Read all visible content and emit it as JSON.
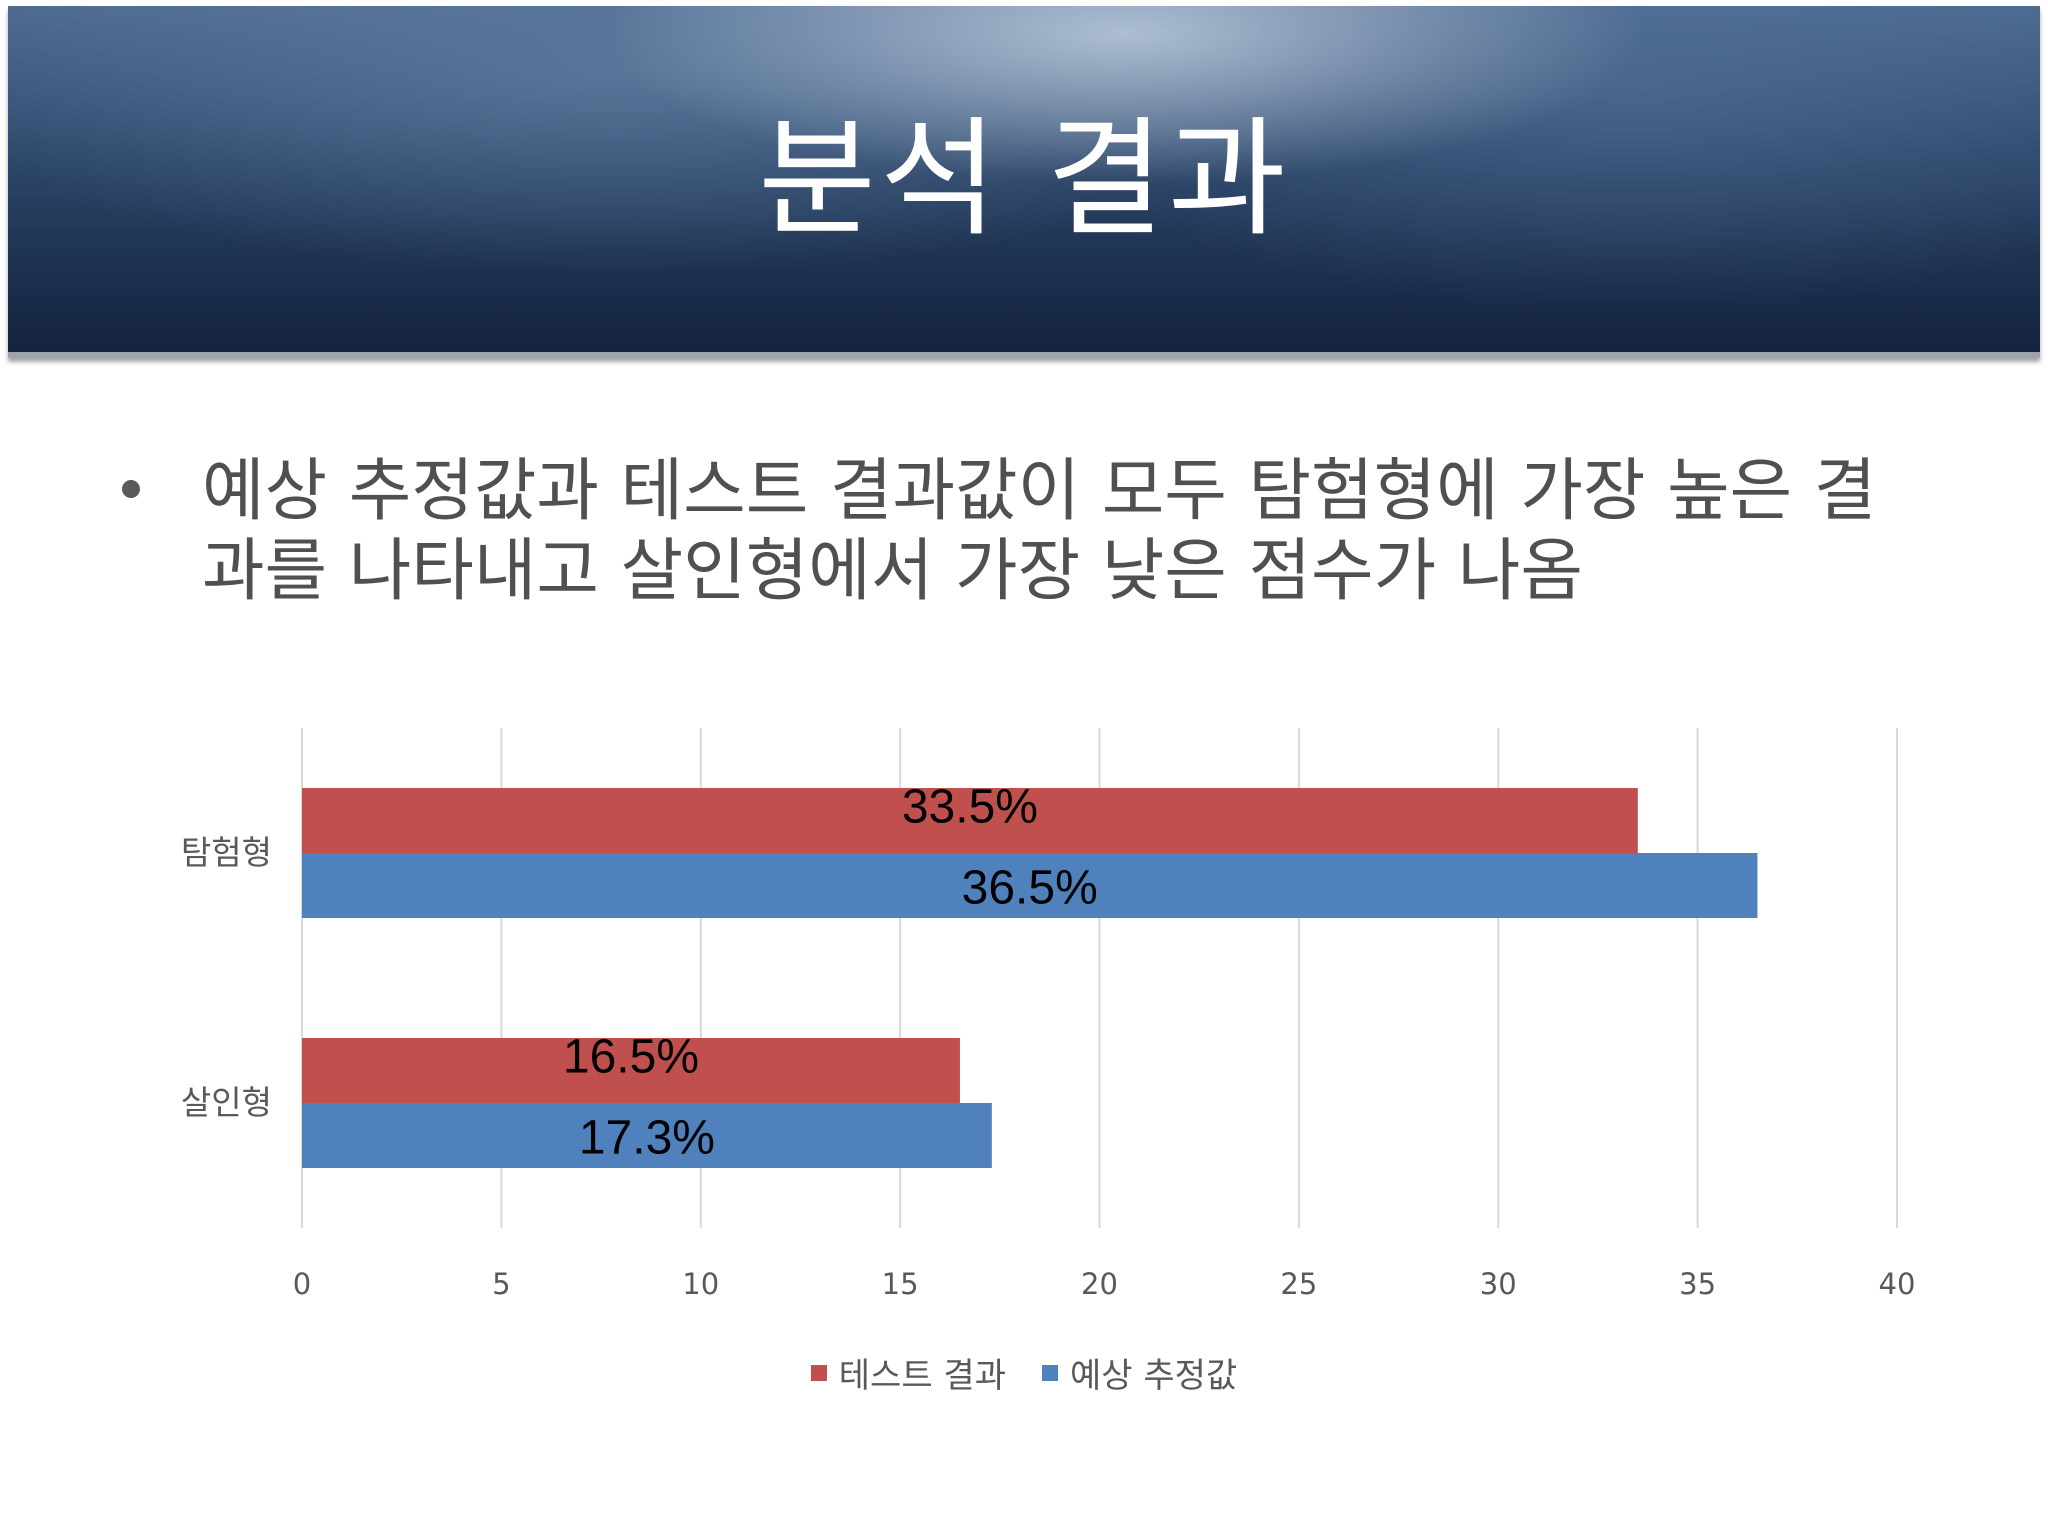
{
  "slide": {
    "title": "분석 결과",
    "bullet": "예상 추정값과 테스트 결과값이 모두 탐험형에 가장 높은 결과를 나타내고 살인형에서 가장 낮은 점수가 나옴"
  },
  "chart_data": {
    "type": "bar",
    "orientation": "horizontal",
    "categories": [
      "탐험형",
      "살인형"
    ],
    "series": [
      {
        "name": "테스트 결과",
        "values": [
          33.5,
          16.5
        ],
        "labels": [
          "33.5%",
          "16.5%"
        ],
        "color": "#c0504d"
      },
      {
        "name": "예상 추정값",
        "values": [
          36.5,
          17.3
        ],
        "labels": [
          "36.5%",
          "17.3%"
        ],
        "color": "#4f81bd"
      }
    ],
    "xlim": [
      0,
      40
    ],
    "xticks": [
      "0",
      "5",
      "10",
      "15",
      "20",
      "25",
      "30",
      "35",
      "40"
    ],
    "grid": true,
    "legend_position": "bottom"
  }
}
